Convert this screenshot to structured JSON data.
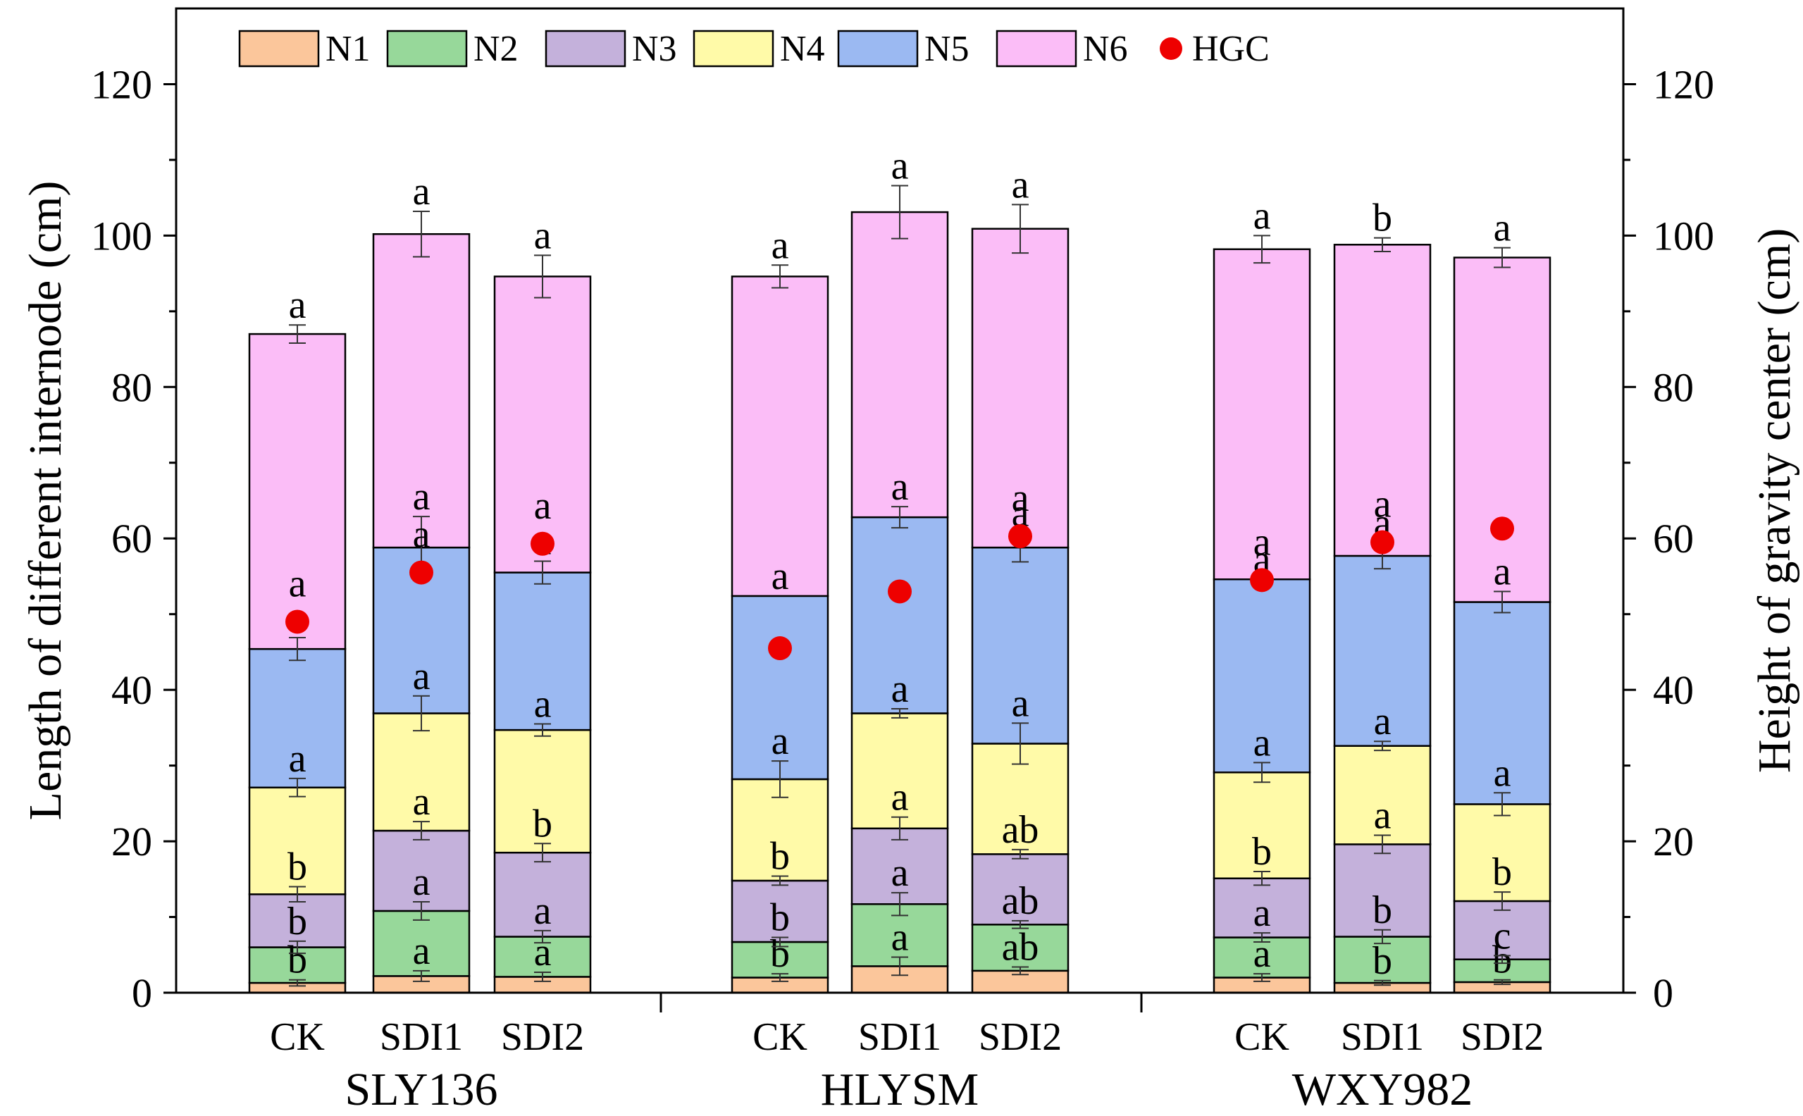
{
  "chart_data": {
    "type": "bar",
    "stacked": true,
    "groups": [
      "SLY136",
      "HLYSM",
      "WXY982"
    ],
    "treatments": [
      "CK",
      "SDI1",
      "SDI2"
    ],
    "categories": [
      "CK",
      "SDI1",
      "SDI2",
      "CK",
      "SDI1",
      "SDI2",
      "CK",
      "SDI1",
      "SDI2"
    ],
    "ylabel": "Length of different internode (cm)",
    "y2label": "Height of gravity center (cm)",
    "ylim": [
      0,
      130
    ],
    "y2lim": [
      0,
      130
    ],
    "yticks": [
      0,
      20,
      40,
      60,
      80,
      100,
      120
    ],
    "y2ticks": [
      0,
      20,
      40,
      60,
      80,
      100,
      120
    ],
    "legend_position": "top",
    "series": [
      {
        "name": "N1",
        "color": "#FBC69B",
        "values": [
          1.3,
          2.2,
          2.1,
          2.0,
          3.5,
          2.9,
          2.0,
          1.3,
          1.4
        ],
        "errors": [
          0.4,
          0.7,
          0.6,
          0.5,
          1.2,
          0.5,
          0.5,
          0.3,
          0.3
        ],
        "letters": [
          "b",
          "a",
          "a",
          "b",
          "a",
          "ab",
          "a",
          "b",
          "b"
        ]
      },
      {
        "name": "N2",
        "color": "#97D89A",
        "values": [
          4.7,
          8.6,
          5.3,
          4.7,
          8.2,
          6.1,
          5.3,
          6.1,
          3.0
        ],
        "errors": [
          0.8,
          1.2,
          0.8,
          0.6,
          1.5,
          0.5,
          0.6,
          0.9,
          0.5
        ],
        "letters": [
          "b",
          "a",
          "a",
          "b",
          "a",
          "ab",
          "a",
          "b",
          "c"
        ]
      },
      {
        "name": "N3",
        "color": "#C4B1DB",
        "values": [
          7.0,
          10.6,
          11.1,
          8.1,
          10.0,
          9.3,
          7.8,
          12.2,
          7.7
        ],
        "errors": [
          1.0,
          1.2,
          1.2,
          0.6,
          1.5,
          0.6,
          0.9,
          1.2,
          1.2
        ],
        "letters": [
          "b",
          "a",
          "b",
          "b",
          "a",
          "ab",
          "b",
          "a",
          "b"
        ]
      },
      {
        "name": "N4",
        "color": "#FFFAA8",
        "values": [
          14.1,
          15.5,
          16.2,
          13.4,
          15.2,
          14.6,
          14.0,
          13.0,
          12.8
        ],
        "errors": [
          1.2,
          2.3,
          0.8,
          2.4,
          0.6,
          2.7,
          1.3,
          0.6,
          1.5
        ],
        "letters": [
          "a",
          "a",
          "a",
          "a",
          "a",
          "a",
          "a",
          "a",
          "a"
        ]
      },
      {
        "name": "N5",
        "color": "#9BB9F2",
        "values": [
          18.3,
          21.9,
          20.8,
          24.2,
          25.9,
          25.9,
          25.5,
          25.1,
          26.7
        ],
        "errors": [
          1.5,
          4.1,
          1.5,
          0,
          1.4,
          1.9,
          0,
          1.7,
          1.4
        ],
        "letters": [
          "a",
          "a",
          "a",
          "a",
          "a",
          "a",
          "a",
          "a",
          "a"
        ]
      },
      {
        "name": "N6",
        "color": "#FBBDF7",
        "values": [
          41.6,
          41.4,
          39.1,
          42.2,
          40.3,
          42.1,
          43.6,
          41.1,
          45.5
        ],
        "errors": [
          1.2,
          3.0,
          2.8,
          1.5,
          3.5,
          3.2,
          1.8,
          0.9,
          1.3
        ],
        "letters": [
          "a",
          "a",
          "a",
          "a",
          "a",
          "a",
          "a",
          "b",
          "a"
        ]
      }
    ],
    "hgc": {
      "name": "HGC",
      "color": "#EE0000",
      "values": [
        49.0,
        55.5,
        59.3,
        45.5,
        53.0,
        60.3,
        54.5,
        59.5,
        61.3
      ],
      "letters": [
        "a",
        "a",
        "a",
        "",
        "",
        "a",
        "a",
        "a",
        ""
      ]
    }
  }
}
